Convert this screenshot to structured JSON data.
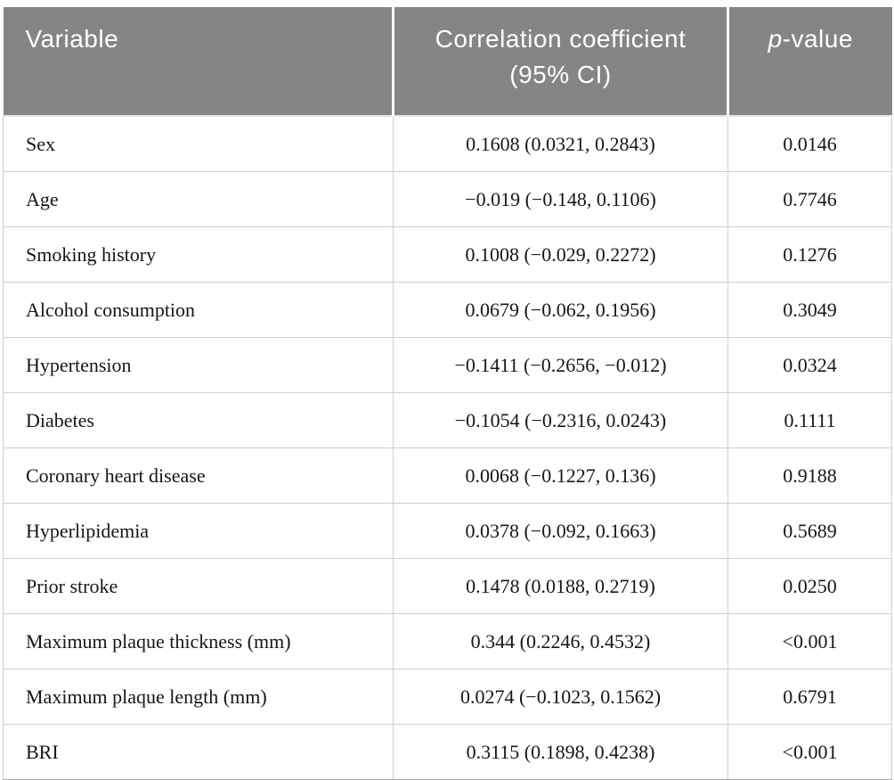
{
  "colors": {
    "header_bg": "#858585",
    "header_text": "#ffffff",
    "body_text": "#161616",
    "grid_line": "#cfcfcf",
    "bottom_rule": "#a8a8a8"
  },
  "table": {
    "header": {
      "variable": "Variable",
      "coefficient": "Correlation coefficient (95% CI)",
      "p_italic": "p",
      "p_rest": "-value"
    },
    "rows": [
      {
        "variable": "Sex",
        "coefficient": "0.1608 (0.0321, 0.2843)",
        "p_value": "0.0146"
      },
      {
        "variable": "Age",
        "coefficient": "−0.019 (−0.148, 0.1106)",
        "p_value": "0.7746"
      },
      {
        "variable": "Smoking history",
        "coefficient": "0.1008 (−0.029, 0.2272)",
        "p_value": "0.1276"
      },
      {
        "variable": "Alcohol consumption",
        "coefficient": "0.0679 (−0.062, 0.1956)",
        "p_value": "0.3049"
      },
      {
        "variable": "Hypertension",
        "coefficient": "−0.1411 (−0.2656, −0.012)",
        "p_value": "0.0324"
      },
      {
        "variable": "Diabetes",
        "coefficient": "−0.1054 (−0.2316, 0.0243)",
        "p_value": "0.1111"
      },
      {
        "variable": "Coronary heart disease",
        "coefficient": "0.0068 (−0.1227, 0.136)",
        "p_value": "0.9188"
      },
      {
        "variable": "Hyperlipidemia",
        "coefficient": "0.0378 (−0.092, 0.1663)",
        "p_value": "0.5689"
      },
      {
        "variable": "Prior stroke",
        "coefficient": "0.1478 (0.0188, 0.2719)",
        "p_value": "0.0250"
      },
      {
        "variable": "Maximum plaque thickness (mm)",
        "coefficient": "0.344 (0.2246, 0.4532)",
        "p_value": "<0.001"
      },
      {
        "variable": "Maximum plaque length (mm)",
        "coefficient": "0.0274 (−0.1023, 0.1562)",
        "p_value": "0.6791"
      },
      {
        "variable": "BRI",
        "coefficient": "0.3115 (0.1898, 0.4238)",
        "p_value": "<0.001"
      }
    ]
  }
}
